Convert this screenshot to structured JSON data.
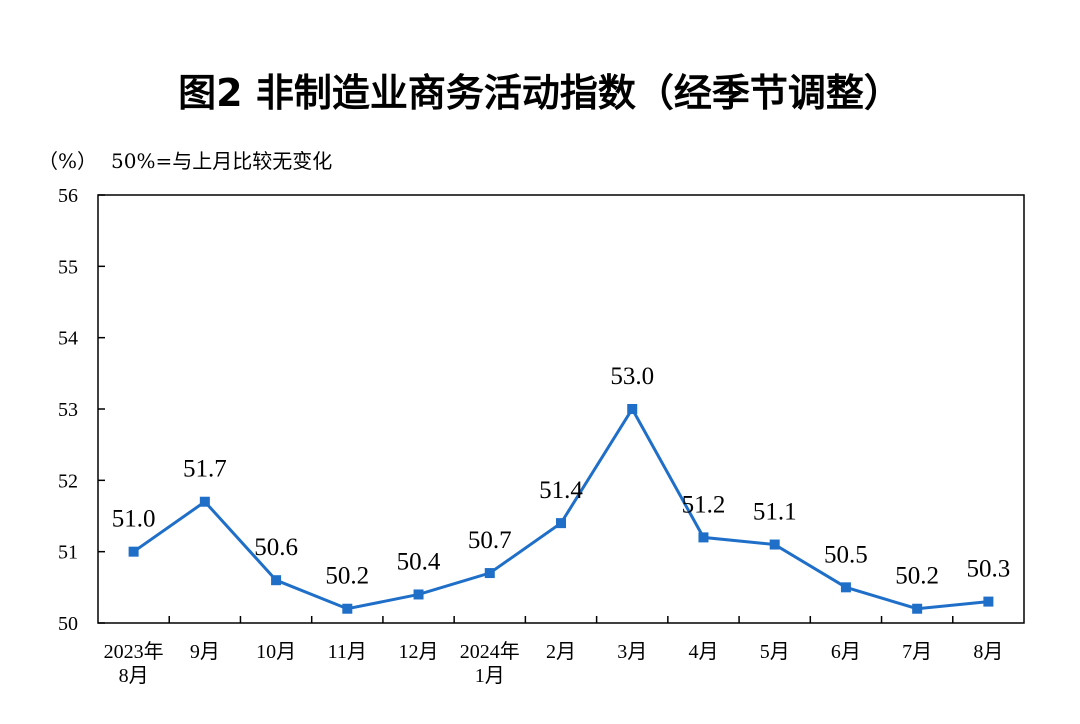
{
  "chart_data": {
    "type": "line",
    "title": "图2  非制造业商务活动指数（经季节调整）",
    "unit_label": "（%）",
    "note": "50%=与上月比较无变化",
    "categories": [
      [
        "2023年",
        "8月"
      ],
      [
        "9月"
      ],
      [
        "10月"
      ],
      [
        "11月"
      ],
      [
        "12月"
      ],
      [
        "2024年",
        "1月"
      ],
      [
        "2月"
      ],
      [
        "3月"
      ],
      [
        "4月"
      ],
      [
        "5月"
      ],
      [
        "6月"
      ],
      [
        "7月"
      ],
      [
        "8月"
      ]
    ],
    "values": [
      51.0,
      51.7,
      50.6,
      50.2,
      50.4,
      50.7,
      51.4,
      53.0,
      51.2,
      51.1,
      50.5,
      50.2,
      50.3
    ],
    "value_labels": [
      "51.0",
      "51.7",
      "50.6",
      "50.2",
      "50.4",
      "50.7",
      "51.4",
      "53.0",
      "51.2",
      "51.1",
      "50.5",
      "50.2",
      "50.3"
    ],
    "ylim": [
      50,
      56
    ],
    "yticks": [
      50,
      51,
      52,
      53,
      54,
      55,
      56
    ],
    "grid": false,
    "line_color": "#1f6fc9",
    "marker": "square"
  }
}
